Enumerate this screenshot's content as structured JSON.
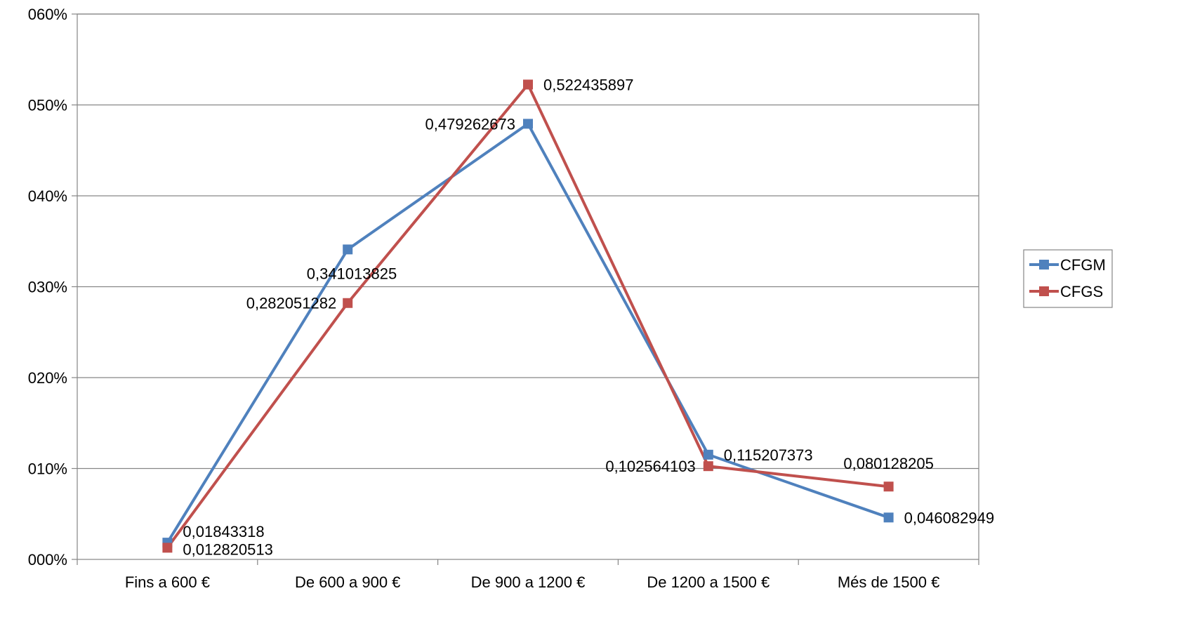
{
  "chart_data": {
    "type": "line",
    "title": "",
    "xlabel": "",
    "ylabel": "",
    "categories": [
      "Fins a 600 €",
      "De 600 a 900 €",
      "De 900 a 1200 €",
      "De 1200 a 1500 €",
      "Més de 1500 €"
    ],
    "y_ticks": [
      "000%",
      "010%",
      "020%",
      "030%",
      "040%",
      "050%",
      "060%"
    ],
    "ylim": [
      0,
      0.6
    ],
    "grid": true,
    "legend_position": "right",
    "series": [
      {
        "name": "CFGM",
        "color": "#4f81bd",
        "values": [
          0.01843318,
          0.341013825,
          0.479262673,
          0.115207373,
          0.046082949
        ],
        "labels": [
          "0,01843318",
          "0,341013825",
          "0,479262673",
          "0,115207373",
          "0,046082949"
        ]
      },
      {
        "name": "CFGS",
        "color": "#c0504d",
        "values": [
          0.012820513,
          0.282051282,
          0.522435897,
          0.102564103,
          0.080128205
        ],
        "labels": [
          "0,012820513",
          "0,282051282",
          "0,522435897",
          "0,102564103",
          "0,080128205"
        ]
      }
    ]
  }
}
